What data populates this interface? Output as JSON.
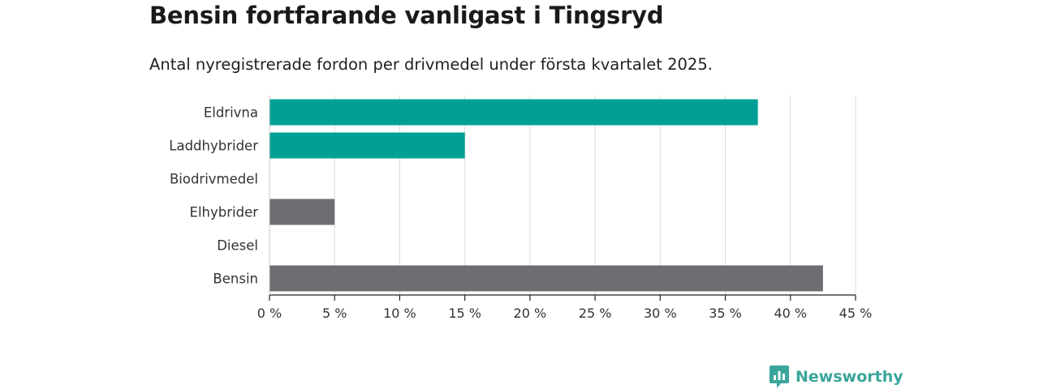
{
  "title": "Bensin fortfarande vanligast i Tingsryd",
  "subtitle": "Antal nyregistrerade fordon per drivmedel under första kvartalet 2025.",
  "brand": {
    "name": "Newsworthy",
    "color": "#3aa59c"
  },
  "chart_data": {
    "type": "bar",
    "orientation": "horizontal",
    "categories": [
      "Eldrivna",
      "Laddhybrider",
      "Biodrivmedel",
      "Elhybrider",
      "Diesel",
      "Bensin"
    ],
    "values": [
      37.5,
      15,
      0,
      5,
      0,
      42.5
    ],
    "colors": [
      "#00a096",
      "#00a096",
      "#00a096",
      "#6e6d73",
      "#6e6d73",
      "#6e6d73"
    ],
    "xlim": [
      0,
      45
    ],
    "xticks": [
      0,
      5,
      10,
      15,
      20,
      25,
      30,
      35,
      40,
      45
    ],
    "xtick_labels": [
      "0 %",
      "5 %",
      "10 %",
      "15 %",
      "20 %",
      "25 %",
      "30 %",
      "35 %",
      "40 %",
      "45 %"
    ],
    "grid": "vertical",
    "legend": "none"
  }
}
